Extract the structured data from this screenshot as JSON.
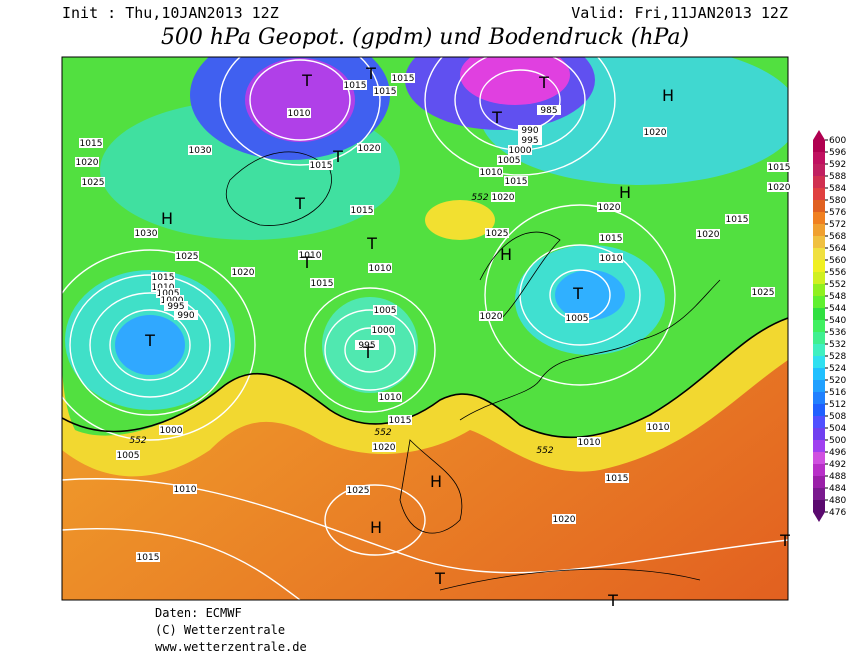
{
  "header": {
    "init": "Init : Thu,10JAN2013 12Z",
    "valid": "Valid: Fri,11JAN2013 12Z",
    "title": "500 hPa Geopot. (gpdm) und Bodendruck (hPa)"
  },
  "colorbar": {
    "ticks": [
      476,
      480,
      484,
      488,
      492,
      496,
      500,
      504,
      508,
      512,
      516,
      520,
      524,
      528,
      532,
      536,
      540,
      544,
      548,
      552,
      556,
      560,
      564,
      568,
      572,
      576,
      580,
      584,
      588,
      592,
      596,
      600
    ],
    "colors": [
      "#5a0a6e",
      "#7a1a8e",
      "#9a20a8",
      "#b830c8",
      "#d050e0",
      "#a040f0",
      "#7040f0",
      "#5050ff",
      "#2060ff",
      "#2080ff",
      "#20a0ff",
      "#20c0ff",
      "#30e0f0",
      "#40f0c0",
      "#40f090",
      "#40f060",
      "#30e040",
      "#60f030",
      "#90f020",
      "#d0f020",
      "#f0f020",
      "#f0e040",
      "#f0c040",
      "#f0a030",
      "#f08020",
      "#e06020",
      "#e04040",
      "#d03050",
      "#c02060",
      "#c01060",
      "#b00050"
    ]
  },
  "pressure_labels": [
    "1010",
    "1015",
    "1020",
    "1025",
    "1030",
    "1030",
    "1025",
    "1020",
    "1015",
    "1010",
    "1005",
    "1000",
    "995",
    "990",
    "1015",
    "1020",
    "1015",
    "1010",
    "1015",
    "1010",
    "1005",
    "1000",
    "995",
    "1010",
    "1015",
    "1020",
    "1000",
    "1005",
    "1010",
    "1015",
    "1025",
    "1020",
    "1015",
    "1010",
    "1010",
    "1020",
    "1005",
    "1010",
    "1015",
    "1025",
    "1020",
    "1015",
    "1010",
    "1005",
    "1000",
    "995",
    "990",
    "985",
    "1020",
    "1020",
    "1015",
    "1020",
    "1025",
    "1020",
    "1015",
    "1015",
    "1015",
    "1015"
  ],
  "isohypse_labels": [
    "552",
    "552",
    "552",
    "552"
  ],
  "systems": [
    "H",
    "H",
    "H",
    "H",
    "H",
    "H",
    "T",
    "T",
    "T",
    "T",
    "T",
    "T",
    "T",
    "T",
    "T",
    "T",
    "T",
    "T",
    "T",
    "T"
  ],
  "footer": {
    "source": "Daten: ECMWF",
    "copyright": "(C) Wetterzentrale",
    "url": "www.wetterzentrale.de"
  }
}
